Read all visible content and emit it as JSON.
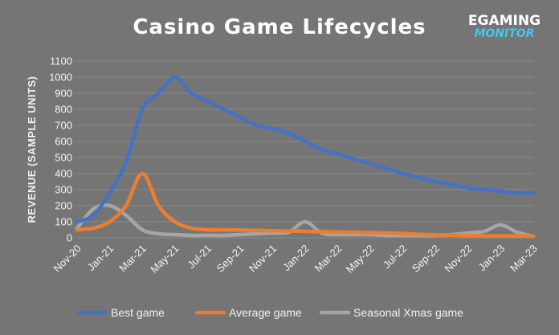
{
  "logo": {
    "line1": "EGAMING",
    "line2": "MONITOR"
  },
  "chart_data": {
    "type": "line",
    "title": "Casino Game Lifecycles",
    "ylabel": "REVENUE (SAMPLE UNITS)",
    "xlabel": "",
    "ylim": [
      0,
      1100
    ],
    "yticks": [
      0,
      100,
      200,
      300,
      400,
      500,
      600,
      700,
      800,
      900,
      1000,
      1100
    ],
    "x_range": [
      0,
      28
    ],
    "xtick_labels": [
      "Nov-20",
      "Jan-21",
      "Mar-21",
      "May-21",
      "Jul-21",
      "Sep-21",
      "Nov-21",
      "Jan-22",
      "Mar-22",
      "May-22",
      "Jul-22",
      "Sep-22",
      "Nov-22",
      "Jan-23",
      "Mar-23"
    ],
    "xtick_positions": [
      0,
      2,
      4,
      6,
      8,
      10,
      12,
      14,
      16,
      18,
      20,
      22,
      24,
      26,
      28
    ],
    "grid": "horizontal",
    "legend": "bottom",
    "series": [
      {
        "name": "Best game",
        "color": "#4472C4",
        "x": [
          0,
          1,
          2,
          3,
          4,
          5,
          6,
          7,
          8,
          9,
          10,
          11,
          12,
          13,
          14,
          15,
          16,
          17,
          18,
          19,
          20,
          21,
          22,
          23,
          24,
          25,
          26,
          27,
          28
        ],
        "values": [
          100,
          140,
          280,
          470,
          800,
          900,
          1000,
          900,
          850,
          800,
          750,
          700,
          680,
          650,
          600,
          550,
          520,
          490,
          460,
          430,
          400,
          375,
          350,
          330,
          310,
          300,
          290,
          280,
          280
        ]
      },
      {
        "name": "Average game",
        "color": "#ED7D31",
        "x": [
          0,
          1,
          2,
          3,
          4,
          5,
          6,
          7,
          8,
          9,
          10,
          11,
          12,
          13,
          14,
          15,
          16,
          17,
          18,
          19,
          20,
          21,
          22,
          23,
          24,
          25,
          26,
          27,
          28
        ],
        "values": [
          50,
          60,
          100,
          200,
          400,
          200,
          100,
          60,
          50,
          50,
          48,
          46,
          44,
          42,
          40,
          38,
          36,
          34,
          32,
          30,
          26,
          22,
          18,
          16,
          14,
          12,
          12,
          12,
          12
        ]
      },
      {
        "name": "Seasonal Xmas game",
        "color": "#A5A5A5",
        "x": [
          0,
          1,
          2,
          3,
          4,
          5,
          6,
          7,
          8,
          9,
          10,
          11,
          12,
          13,
          14,
          15,
          16,
          17,
          18,
          19,
          20,
          21,
          22,
          23,
          24,
          25,
          26,
          27,
          28
        ],
        "values": [
          60,
          180,
          200,
          140,
          50,
          25,
          20,
          15,
          15,
          15,
          20,
          25,
          30,
          35,
          100,
          30,
          20,
          20,
          20,
          15,
          15,
          15,
          15,
          20,
          30,
          40,
          80,
          35,
          10
        ]
      }
    ]
  }
}
